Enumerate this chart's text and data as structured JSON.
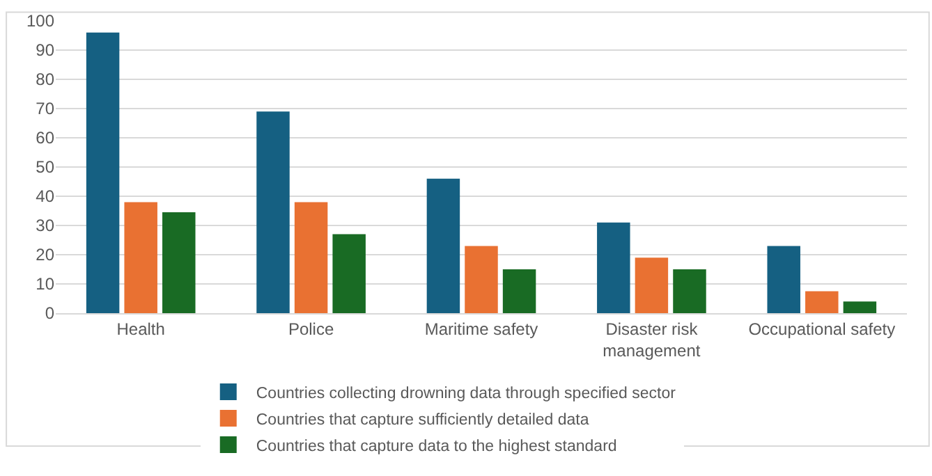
{
  "chart_data": {
    "type": "bar",
    "categories": [
      "Health",
      "Police",
      "Maritime safety",
      "Disaster risk management",
      "Occupational safety"
    ],
    "series": [
      {
        "name": "Countries collecting drowning data through specified sector",
        "color": "#156082",
        "values": [
          96,
          69,
          46,
          31,
          23
        ]
      },
      {
        "name": "Countries that capture sufficiently detailed data",
        "color": "#e97132",
        "values": [
          38,
          38,
          23,
          19,
          7.5
        ]
      },
      {
        "name": "Countries that capture data to the highest standard",
        "color": "#196b24",
        "values": [
          34.5,
          27,
          15,
          15,
          4
        ]
      }
    ],
    "ylim": [
      0,
      100
    ],
    "yticks": [
      0,
      10,
      20,
      30,
      40,
      50,
      60,
      70,
      80,
      90,
      100
    ],
    "grid": "y",
    "legend": "bottom"
  }
}
